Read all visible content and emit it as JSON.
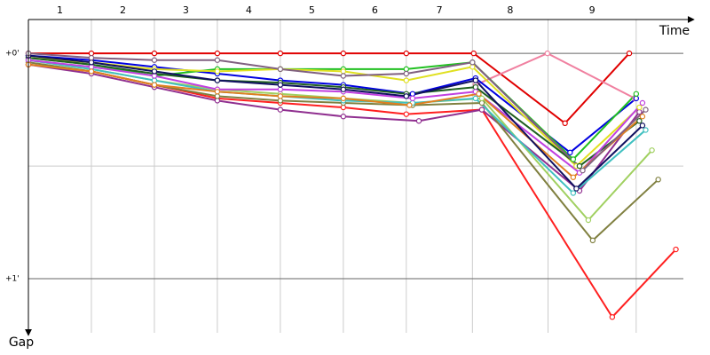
{
  "chart_data": {
    "type": "line",
    "x_label": "Time",
    "y_label": "Gap",
    "categories": [
      "1",
      "2",
      "3",
      "4",
      "5",
      "6",
      "7",
      "8",
      "9"
    ],
    "xlim": [
      0,
      10.54
    ],
    "ylim": [
      -0.15,
      1.24
    ],
    "xticks": [
      0,
      1,
      2,
      3,
      4,
      5,
      6,
      7.05,
      8.25,
      9.65
    ],
    "yticks": [
      {
        "value": 0,
        "label": "+0'"
      },
      {
        "value": 1,
        "label": "+1'"
      }
    ],
    "minor_yticks": [
      0.5
    ],
    "grid": true,
    "series": [
      {
        "color": "#e00000",
        "x": [
          0,
          1,
          2,
          3,
          4,
          5,
          6,
          7.07,
          8.52,
          9.54
        ],
        "values": [
          0,
          0,
          0,
          0,
          0,
          0,
          0,
          0,
          0.31,
          0
        ]
      },
      {
        "color": "#f080a0",
        "x": [
          7.1,
          8.24,
          9.63
        ],
        "values": [
          0.14,
          0,
          0.2
        ]
      },
      {
        "color": "#ff2020",
        "x": [
          0,
          1,
          2,
          3,
          4,
          5,
          6,
          7.2,
          9.27,
          10.28
        ],
        "values": [
          0.05,
          0.08,
          0.14,
          0.2,
          0.22,
          0.24,
          0.27,
          0.25,
          1.17,
          0.87
        ]
      },
      {
        "color": "#903090",
        "x": [
          0,
          1,
          2,
          3,
          4,
          5,
          6.2,
          7.2,
          8.75,
          9.7
        ],
        "values": [
          0.05,
          0.09,
          0.15,
          0.21,
          0.25,
          0.28,
          0.3,
          0.25,
          0.61,
          0.26
        ]
      },
      {
        "color": "#808040",
        "x": [
          0,
          1,
          2,
          3,
          4,
          5,
          6.1,
          7.2,
          8.96,
          10
        ],
        "values": [
          0.04,
          0.08,
          0.14,
          0.19,
          0.21,
          0.22,
          0.23,
          0.22,
          0.83,
          0.56
        ]
      },
      {
        "color": "#a0d060",
        "x": [
          0,
          1,
          2,
          3,
          4,
          5,
          6.1,
          7.2,
          8.89,
          9.9
        ],
        "values": [
          0.03,
          0.07,
          0.12,
          0.16,
          0.18,
          0.2,
          0.22,
          0.2,
          0.74,
          0.43
        ]
      },
      {
        "color": "#0000e0",
        "x": [
          0,
          1,
          2,
          3,
          4,
          5,
          6.1,
          7.1,
          8.6,
          9.65
        ],
        "values": [
          0.01,
          0.03,
          0.06,
          0.09,
          0.12,
          0.14,
          0.18,
          0.11,
          0.44,
          0.2
        ]
      },
      {
        "color": "#20c020",
        "x": [
          0,
          1,
          2,
          3,
          4,
          5,
          6,
          7.05,
          8.65,
          9.65
        ],
        "values": [
          0.02,
          0.05,
          0.1,
          0.07,
          0.07,
          0.07,
          0.07,
          0.04,
          0.47,
          0.18
        ]
      },
      {
        "color": "#e0e020",
        "x": [
          0,
          1,
          2,
          3,
          4,
          5,
          6,
          7.05,
          8.7,
          9.7
        ],
        "values": [
          0.02,
          0.04,
          0.07,
          0.08,
          0.07,
          0.08,
          0.12,
          0.06,
          0.5,
          0.24
        ]
      },
      {
        "color": "#40c0c0",
        "x": [
          0,
          1,
          2,
          3,
          4,
          5,
          6.1,
          7.1,
          8.65,
          9.8
        ],
        "values": [
          0.03,
          0.07,
          0.12,
          0.17,
          0.19,
          0.21,
          0.22,
          0.2,
          0.62,
          0.34
        ]
      },
      {
        "color": "#206020",
        "x": [
          0,
          1,
          2,
          3,
          4,
          5,
          6,
          7.1,
          8.75,
          9.7
        ],
        "values": [
          0.02,
          0.05,
          0.09,
          0.12,
          0.13,
          0.15,
          0.18,
          0.15,
          0.5,
          0.3
        ]
      },
      {
        "color": "#c040e0",
        "x": [
          0,
          1,
          2,
          3,
          4,
          5,
          6.1,
          7.1,
          8.75,
          9.75
        ],
        "values": [
          0.03,
          0.06,
          0.1,
          0.16,
          0.16,
          0.17,
          0.2,
          0.17,
          0.53,
          0.22
        ]
      },
      {
        "color": "#e08020",
        "x": [
          0,
          1,
          2,
          3,
          4,
          5,
          6.05,
          7.15,
          8.65,
          9.75
        ],
        "values": [
          0.05,
          0.08,
          0.14,
          0.17,
          0.19,
          0.2,
          0.23,
          0.18,
          0.55,
          0.28
        ]
      },
      {
        "color": "#101060",
        "x": [
          0,
          1,
          2,
          3,
          4,
          5,
          6,
          7.1,
          8.7,
          9.75
        ],
        "values": [
          0.01,
          0.04,
          0.08,
          0.12,
          0.14,
          0.16,
          0.19,
          0.12,
          0.6,
          0.32
        ]
      },
      {
        "color": "#806080",
        "x": [
          0,
          1,
          2,
          3,
          4,
          5,
          6,
          7.05,
          8.8,
          9.8
        ],
        "values": [
          0,
          0.02,
          0.03,
          0.03,
          0.07,
          0.1,
          0.09,
          0.04,
          0.52,
          0.25
        ]
      }
    ]
  }
}
